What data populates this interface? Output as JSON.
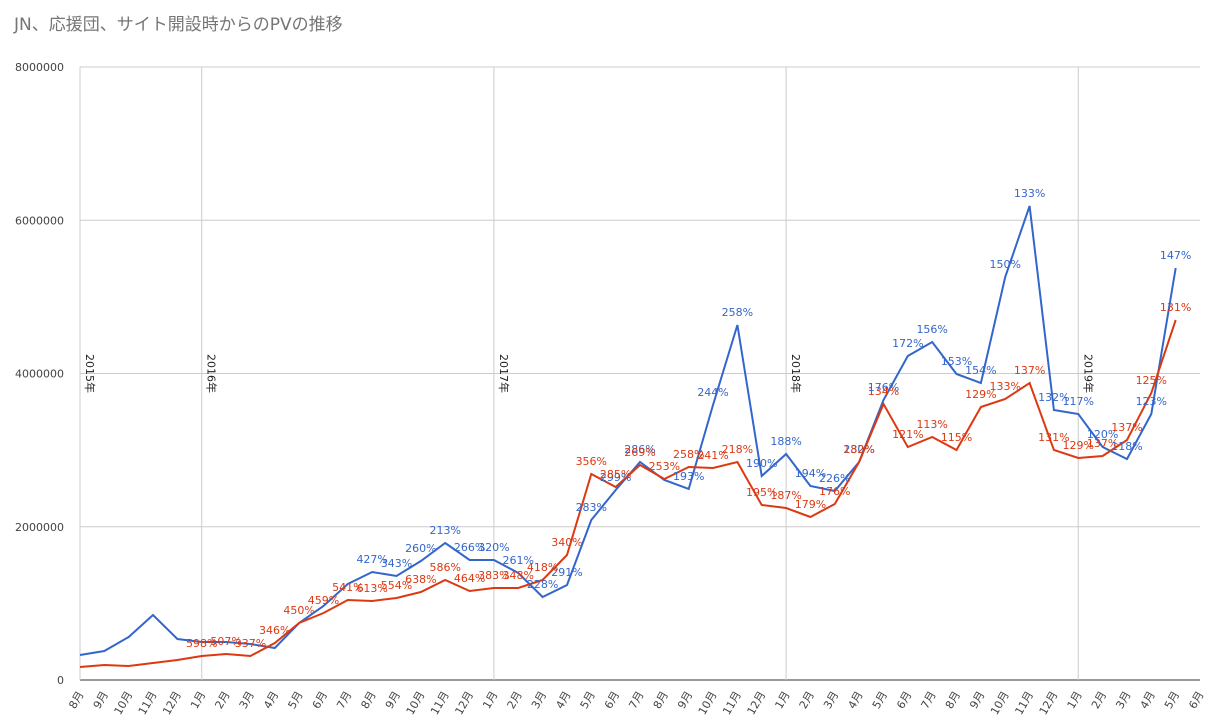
{
  "chart_data": {
    "type": "line",
    "title": "JN、応援団、サイト開設時からのPVの推移",
    "categories": [
      "8月",
      "9月",
      "10月",
      "11月",
      "12月",
      "1月",
      "2月",
      "3月",
      "4月",
      "5月",
      "6月",
      "7月",
      "8月",
      "9月",
      "10月",
      "11月",
      "12月",
      "1月",
      "2月",
      "3月",
      "4月",
      "5月",
      "6月",
      "7月",
      "8月",
      "9月",
      "10月",
      "11月",
      "12月",
      "1月",
      "2月",
      "3月",
      "4月",
      "5月",
      "6月",
      "7月",
      "8月",
      "9月",
      "10月",
      "11月",
      "12月",
      "1月",
      "2月",
      "3月",
      "4月",
      "5月",
      "6月"
    ],
    "year_markers": [
      {
        "index": 0,
        "label": "2015年"
      },
      {
        "index": 5,
        "label": "2016年"
      },
      {
        "index": 17,
        "label": "2017年"
      },
      {
        "index": 29,
        "label": "2018年"
      },
      {
        "index": 41,
        "label": "2019年"
      }
    ],
    "ylim": [
      0,
      8000000
    ],
    "yticks": [
      0,
      2000000,
      4000000,
      6000000,
      8000000
    ],
    "grid": true,
    "series": [
      {
        "color": "#3366cc",
        "values": [
          326000,
          378000,
          561000,
          848000,
          535000,
          496000,
          496000,
          470000,
          418000,
          744000,
          966000,
          1253000,
          1410000,
          1357000,
          1553000,
          1788000,
          1566000,
          1566000,
          1396000,
          1083000,
          1240000,
          2088000,
          2480000,
          2845000,
          2610000,
          2493000,
          3589000,
          4633000,
          2662000,
          2950000,
          2532000,
          2467000,
          2845000,
          3654000,
          4229000,
          4411000,
          3994000,
          3876000,
          5260000,
          6186000,
          3524000,
          3472000,
          3041000,
          2884000,
          3472000,
          5377000,
          null
        ],
        "point_labels": [
          null,
          null,
          null,
          null,
          null,
          null,
          null,
          null,
          null,
          null,
          null,
          null,
          "427%",
          "343%",
          "260%",
          "213%",
          "266%",
          "320%",
          "261%",
          "228%",
          "291%",
          "283%",
          "299%",
          "286%",
          null,
          "193%",
          "244%",
          "258%",
          "190%",
          "188%",
          "194%",
          "226%",
          "230%",
          "176%",
          "172%",
          "156%",
          "153%",
          "154%",
          "150%",
          "133%",
          "132%",
          "117%",
          "120%",
          "118%",
          "123%",
          "147%",
          null
        ]
      },
      {
        "color": "#dc3912",
        "values": [
          170000,
          196000,
          183000,
          222000,
          261000,
          313000,
          339000,
          313000,
          483000,
          744000,
          874000,
          1044000,
          1031000,
          1070000,
          1148000,
          1305000,
          1161000,
          1200000,
          1200000,
          1305000,
          1631000,
          2688000,
          2519000,
          2806000,
          2623000,
          2780000,
          2767000,
          2845000,
          2284000,
          2245000,
          2127000,
          2297000,
          2845000,
          3602000,
          3041000,
          3171000,
          3002000,
          3563000,
          3667000,
          3876000,
          3002000,
          2897000,
          2923000,
          3132000,
          3746000,
          4698000,
          null
        ],
        "point_labels": [
          null,
          null,
          null,
          null,
          null,
          "598%",
          "507%",
          "337%",
          "346%",
          "450%",
          "459%",
          "541%",
          "613%",
          "554%",
          "638%",
          "586%",
          "464%",
          "383%",
          "348%",
          "418%",
          "340%",
          "356%",
          "285%",
          "269%",
          "253%",
          "258%",
          "241%",
          "218%",
          "195%",
          "187%",
          "179%",
          "176%",
          "182%",
          "134%",
          "121%",
          "113%",
          "115%",
          "129%",
          "133%",
          "137%",
          "131%",
          "129%",
          "137%",
          "137%",
          "125%",
          "131%",
          null
        ]
      }
    ]
  }
}
